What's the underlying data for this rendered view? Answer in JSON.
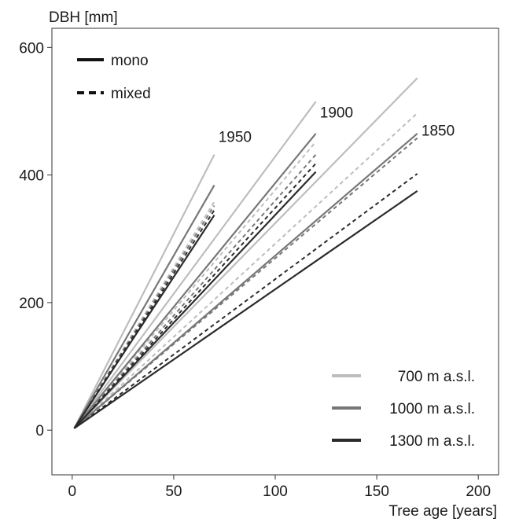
{
  "chart_data": {
    "type": "line",
    "title": "",
    "xlabel": "Tree age [years]",
    "ylabel": "DBH [mm]",
    "xlim": [
      -10,
      210
    ],
    "ylim": [
      -70,
      630
    ],
    "x_ticks": [
      0,
      50,
      100,
      150,
      200
    ],
    "y_ticks": [
      0,
      200,
      400,
      600
    ],
    "grid": false,
    "colors": {
      "700": "#bdbdbd",
      "1000": "#777777",
      "1300": "#2b2b2b"
    },
    "linetype_legend": {
      "placement": "top-left",
      "items": [
        {
          "label": "mono",
          "dash": "solid"
        },
        {
          "label": "mixed",
          "dash": "dashed"
        }
      ]
    },
    "elevation_legend": {
      "placement": "bottom-right",
      "items": [
        {
          "label": "700 m a.s.l.",
          "color": "#bdbdbd"
        },
        {
          "label": "1000 m a.s.l.",
          "color": "#777777"
        },
        {
          "label": "1300 m a.s.l.",
          "color": "#2b2b2b"
        }
      ]
    },
    "annotations": [
      {
        "text": "1950",
        "x": 72,
        "y": 452
      },
      {
        "text": "1900",
        "x": 122,
        "y": 490
      },
      {
        "text": "1850",
        "x": 172,
        "y": 462
      }
    ],
    "series": [
      {
        "cohort": "1950",
        "elevation": "700",
        "type": "mono",
        "x": [
          1,
          70
        ],
        "y": [
          3,
          432
        ],
        "color": "#bdbdbd"
      },
      {
        "cohort": "1950",
        "elevation": "1000",
        "type": "mono",
        "x": [
          1,
          70
        ],
        "y": [
          3,
          384
        ],
        "color": "#777777"
      },
      {
        "cohort": "1950",
        "elevation": "1300",
        "type": "mono",
        "x": [
          1,
          70
        ],
        "y": [
          3,
          337
        ],
        "color": "#2b2b2b"
      },
      {
        "cohort": "1950",
        "elevation": "700",
        "type": "mixed",
        "x": [
          1,
          70
        ],
        "y": [
          3,
          358
        ],
        "color": "#bdbdbd"
      },
      {
        "cohort": "1950",
        "elevation": "1000",
        "type": "mixed",
        "x": [
          1,
          70
        ],
        "y": [
          3,
          352
        ],
        "color": "#777777"
      },
      {
        "cohort": "1950",
        "elevation": "1300",
        "type": "mixed",
        "x": [
          1,
          70
        ],
        "y": [
          3,
          345
        ],
        "color": "#2b2b2b"
      },
      {
        "cohort": "1900",
        "elevation": "700",
        "type": "mono",
        "x": [
          1,
          120
        ],
        "y": [
          3,
          515
        ],
        "color": "#bdbdbd"
      },
      {
        "cohort": "1900",
        "elevation": "1000",
        "type": "mono",
        "x": [
          1,
          120
        ],
        "y": [
          3,
          465
        ],
        "color": "#777777"
      },
      {
        "cohort": "1900",
        "elevation": "1300",
        "type": "mono",
        "x": [
          1,
          120
        ],
        "y": [
          3,
          405
        ],
        "color": "#2b2b2b"
      },
      {
        "cohort": "1900",
        "elevation": "700",
        "type": "mixed",
        "x": [
          1,
          120
        ],
        "y": [
          3,
          452
        ],
        "color": "#bdbdbd"
      },
      {
        "cohort": "1900",
        "elevation": "1000",
        "type": "mixed",
        "x": [
          1,
          120
        ],
        "y": [
          3,
          432
        ],
        "color": "#777777"
      },
      {
        "cohort": "1900",
        "elevation": "1300",
        "type": "mixed",
        "x": [
          1,
          120
        ],
        "y": [
          3,
          418
        ],
        "color": "#2b2b2b"
      },
      {
        "cohort": "1850",
        "elevation": "700",
        "type": "mono",
        "x": [
          1,
          170
        ],
        "y": [
          3,
          552
        ],
        "color": "#bdbdbd"
      },
      {
        "cohort": "1850",
        "elevation": "1000",
        "type": "mono",
        "x": [
          1,
          170
        ],
        "y": [
          3,
          465
        ],
        "color": "#777777"
      },
      {
        "cohort": "1850",
        "elevation": "1300",
        "type": "mono",
        "x": [
          1,
          170
        ],
        "y": [
          3,
          375
        ],
        "color": "#2b2b2b"
      },
      {
        "cohort": "1850",
        "elevation": "700",
        "type": "mixed",
        "x": [
          1,
          170
        ],
        "y": [
          3,
          497
        ],
        "color": "#bdbdbd"
      },
      {
        "cohort": "1850",
        "elevation": "1000",
        "type": "mixed",
        "x": [
          1,
          170
        ],
        "y": [
          3,
          458
        ],
        "color": "#777777"
      },
      {
        "cohort": "1850",
        "elevation": "1300",
        "type": "mixed",
        "x": [
          1,
          170
        ],
        "y": [
          3,
          402
        ],
        "color": "#2b2b2b"
      }
    ]
  }
}
